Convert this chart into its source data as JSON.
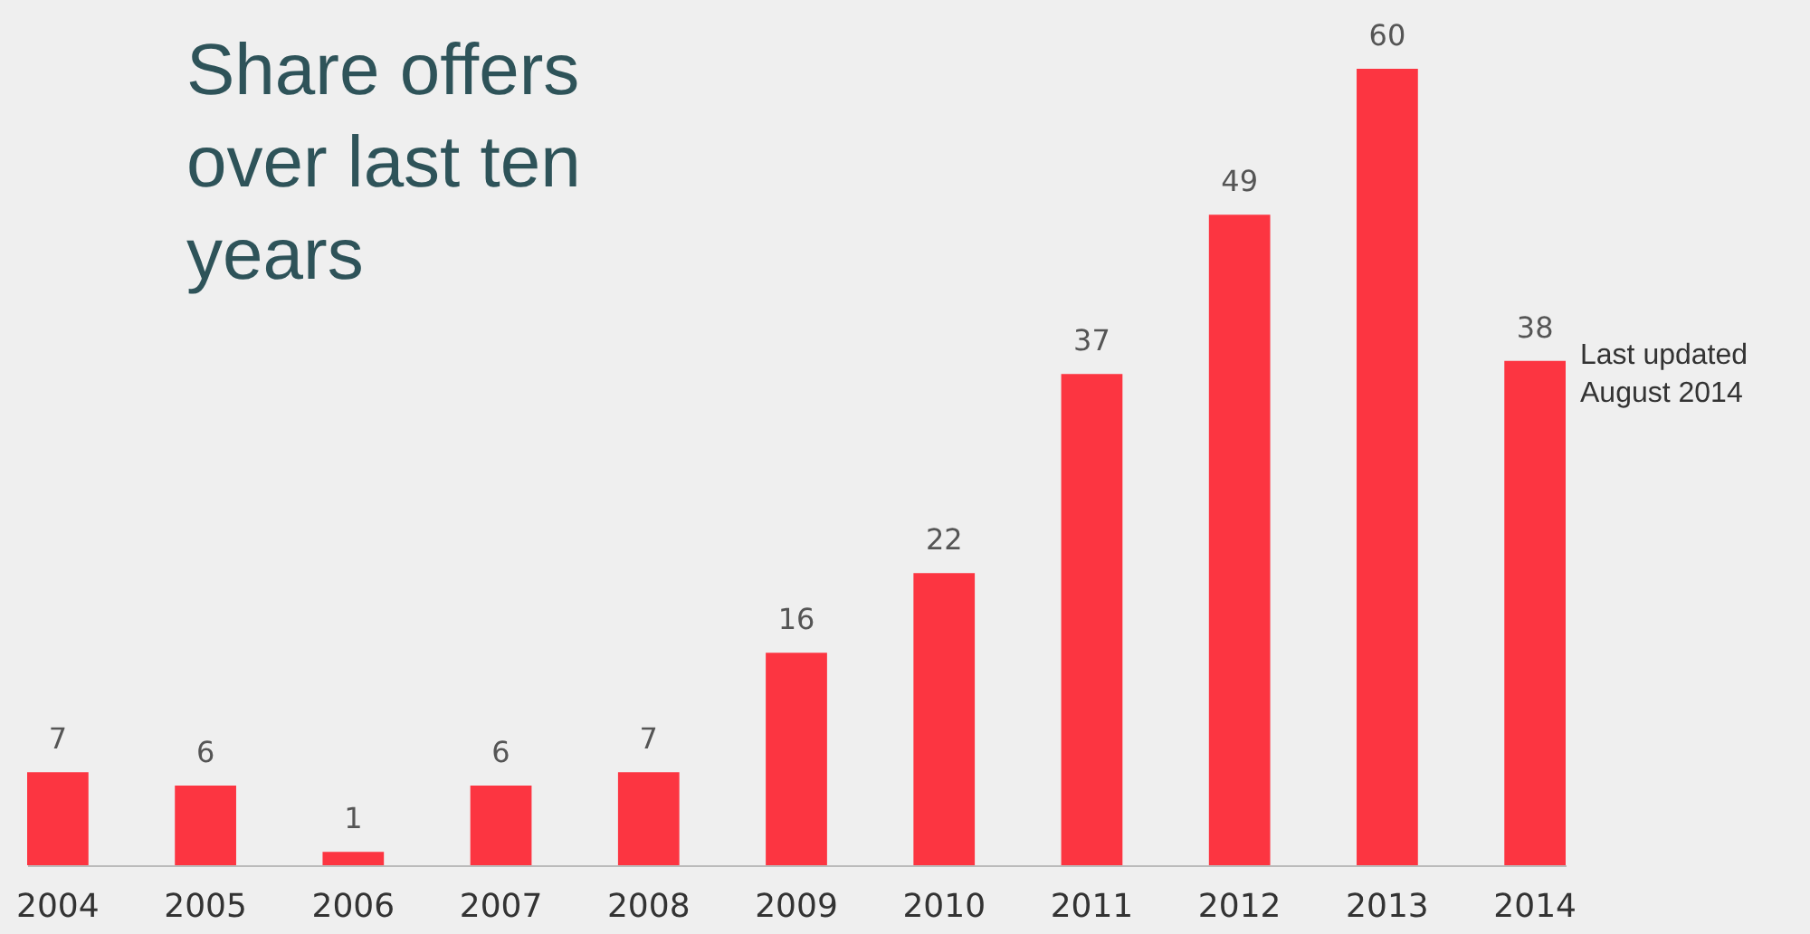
{
  "chart_data": {
    "type": "bar",
    "title": "Share offers over last ten years",
    "categories": [
      "2004",
      "2005",
      "2006",
      "2007",
      "2008",
      "2009",
      "2010",
      "2011",
      "2012",
      "2013",
      "2014"
    ],
    "values": [
      7,
      6,
      1,
      6,
      7,
      16,
      22,
      37,
      49,
      60,
      38
    ],
    "color": "#fc3541",
    "data_labels": true,
    "annotations": [
      "Last updated August 2014"
    ]
  }
}
